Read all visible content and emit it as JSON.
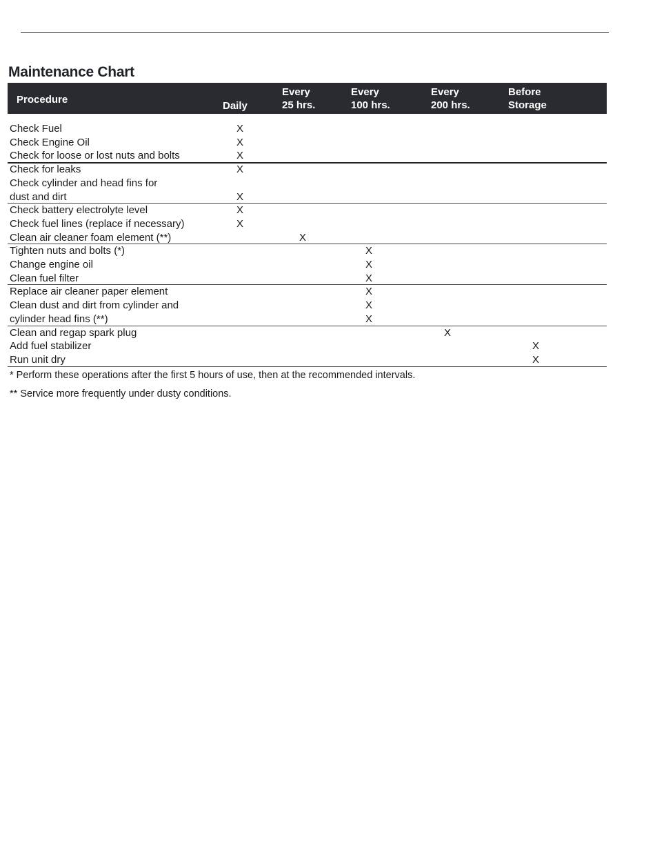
{
  "title": "Maintenance Chart",
  "columns": {
    "procedure": "Procedure",
    "daily": "Daily",
    "every25_l1": "Every",
    "every25_l2": "25 hrs.",
    "every100_l1": "Every",
    "every100_l2": "100 hrs.",
    "every200_l1": "Every",
    "every200_l2": "200 hrs.",
    "storage_l1": "Before",
    "storage_l2": "Storage"
  },
  "mark_symbol": "X",
  "header_color": "#2a2b30",
  "groups": [
    [
      {
        "text": "Check Fuel",
        "col": "daily"
      },
      {
        "text": "Check Engine Oil",
        "col": "daily"
      },
      {
        "text": "Check for loose or lost nuts and bolts",
        "col": "daily"
      }
    ],
    [
      {
        "text": "Check for leaks",
        "col": "daily"
      },
      {
        "text": "Check cylinder and head fins for",
        "col": null
      },
      {
        "text": "dust and dirt",
        "col": "daily"
      }
    ],
    [
      {
        "text": "Check battery electrolyte level",
        "col": "daily"
      },
      {
        "text": "Check fuel lines (replace if necessary)",
        "col": "daily"
      },
      {
        "text": "Clean air cleaner foam element (**)",
        "col": "every25"
      }
    ],
    [
      {
        "text": "Tighten nuts and bolts (*)",
        "col": "every100"
      },
      {
        "text": "Change engine oil",
        "col": "every100"
      },
      {
        "text": "Clean fuel filter",
        "col": "every100"
      }
    ],
    [
      {
        "text": "Replace air cleaner paper element",
        "col": "every100"
      },
      {
        "text": "Clean dust and dirt from cylinder and",
        "col": "every100"
      },
      {
        "text": "cylinder head fins (**)",
        "col": "every100"
      }
    ],
    [
      {
        "text": "Clean and regap spark plug",
        "col": "every200"
      },
      {
        "text": "Add fuel stabilizer",
        "col": "storage"
      },
      {
        "text": "Run unit dry",
        "col": "storage"
      }
    ]
  ],
  "footnotes": [
    "*  Perform these operations after the first 5 hours of use, then at the recommended intervals.",
    "**  Service more frequently under dusty conditions."
  ]
}
